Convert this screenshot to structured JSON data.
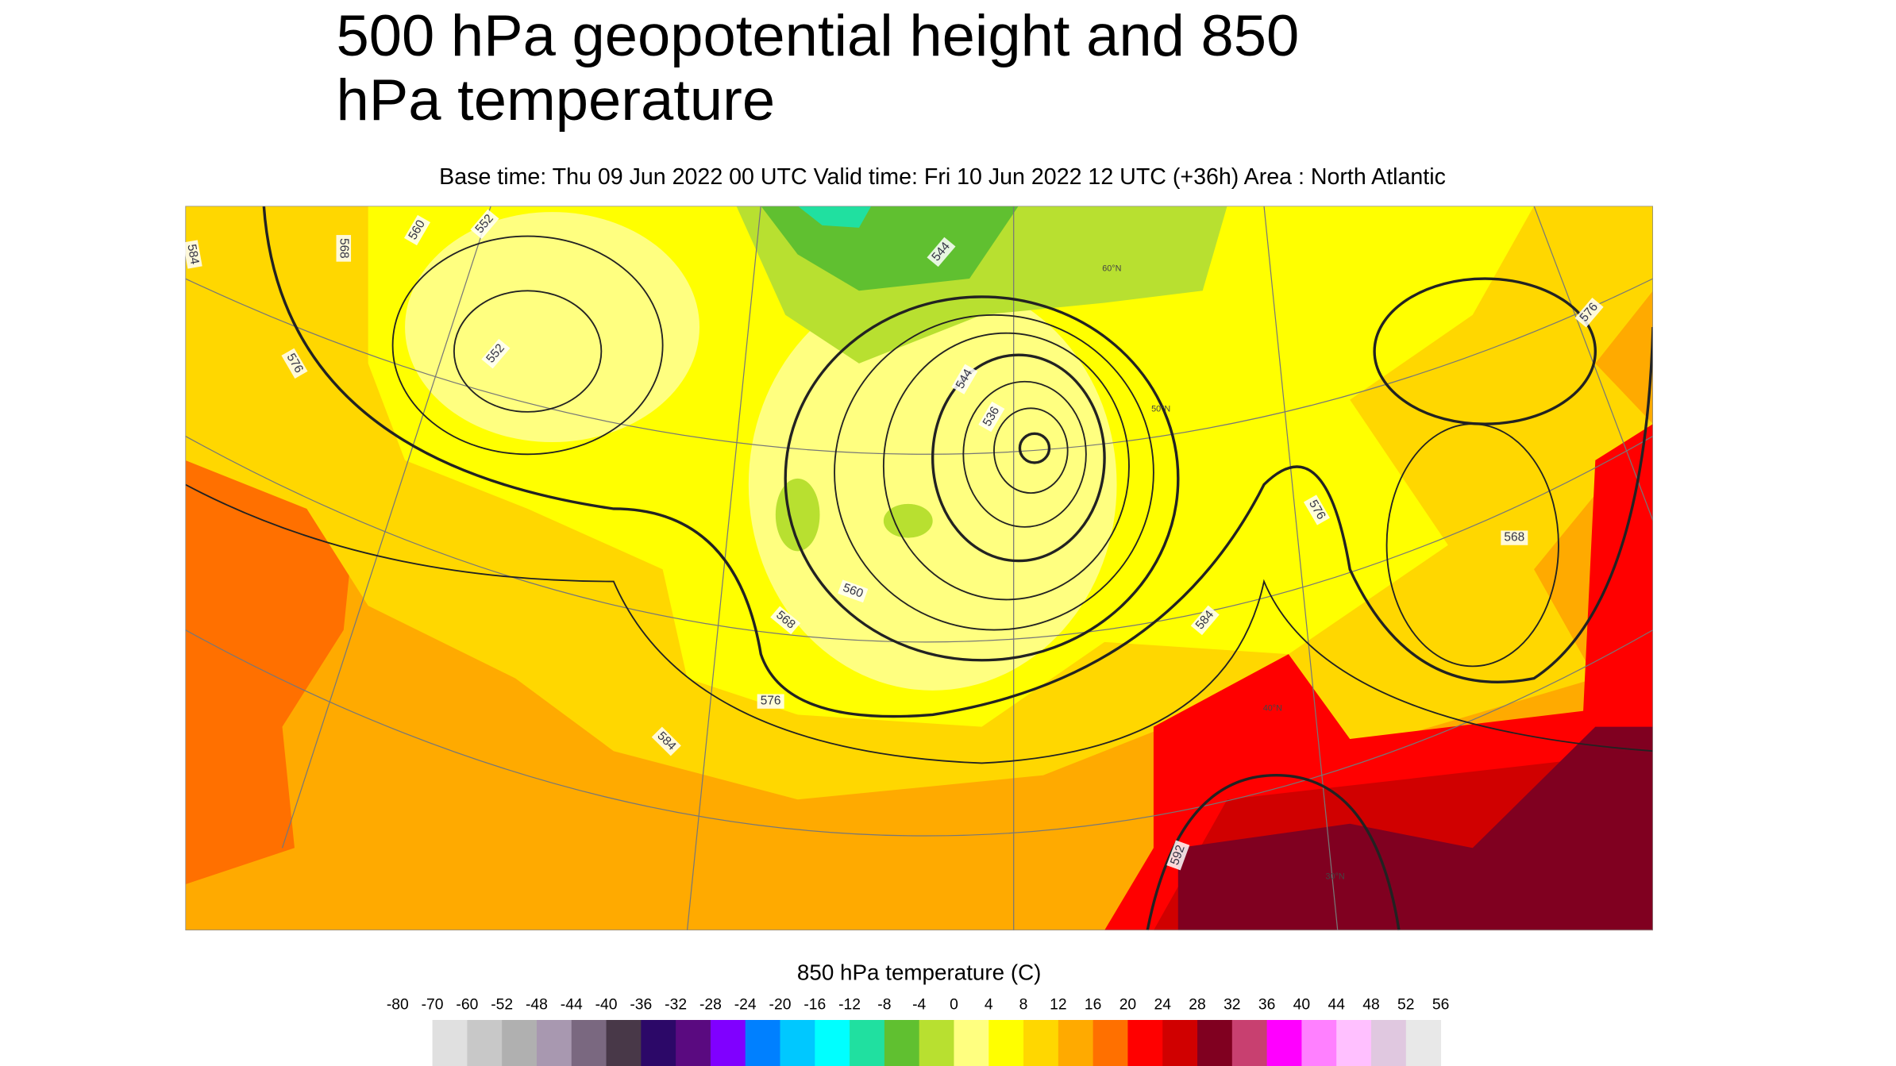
{
  "header": {
    "title_lines": [
      "500 hPa geopotential height and 850",
      "hPa temperature"
    ],
    "subtitle": "Base time: Thu 09 Jun 2022 00 UTC Valid time: Fri 10 Jun 2022 12 UTC (+36h) Area : North Atlantic"
  },
  "map": {
    "contour_labels": [
      "584",
      "568",
      "560",
      "552",
      "544",
      "576",
      "552",
      "544",
      "536",
      "560",
      "568",
      "576",
      "584",
      "584",
      "576",
      "568",
      "576",
      "592"
    ],
    "latitude_labels": [
      "60°N",
      "50°N",
      "40°N",
      "30°N"
    ]
  },
  "colorbar": {
    "title": "850 hPa temperature (C)",
    "ticks": [
      -80,
      -70,
      -60,
      -52,
      -48,
      -44,
      -40,
      -36,
      -32,
      -28,
      -24,
      -20,
      -16,
      -12,
      -8,
      -4,
      0,
      4,
      8,
      12,
      16,
      20,
      24,
      28,
      32,
      36,
      40,
      44,
      48,
      52,
      56
    ],
    "colors": [
      "#e0e0e0",
      "#c8c8c8",
      "#b0b0b0",
      "#a898b0",
      "#7a6880",
      "#483848",
      "#2c0868",
      "#5a0a80",
      "#8000ff",
      "#0080ff",
      "#00c8ff",
      "#00ffff",
      "#20e0a0",
      "#60c030",
      "#b8e030",
      "#ffff80",
      "#ffff00",
      "#ffd700",
      "#ffaa00",
      "#ff7000",
      "#ff0000",
      "#d00000",
      "#800020",
      "#c84070",
      "#ff00ff",
      "#ff80ff",
      "#ffc0ff",
      "#e0c8e0",
      "#e8e8e8"
    ]
  }
}
